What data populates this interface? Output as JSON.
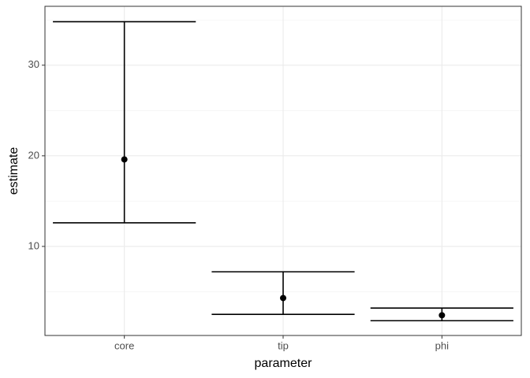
{
  "chart_data": {
    "type": "errorbar",
    "x_label": "parameter",
    "y_label": "estimate",
    "categories": [
      "core",
      "tip",
      "phi"
    ],
    "values": [
      19.6,
      4.3,
      2.4
    ],
    "lower": [
      12.6,
      2.5,
      1.8
    ],
    "upper": [
      34.8,
      7.2,
      3.2
    ],
    "color": "#000000",
    "ylim": [
      0.17,
      36.5
    ],
    "yticks": [
      10,
      20,
      30
    ],
    "minor_yticks": [
      5,
      15,
      25,
      35
    ],
    "grid": true
  }
}
